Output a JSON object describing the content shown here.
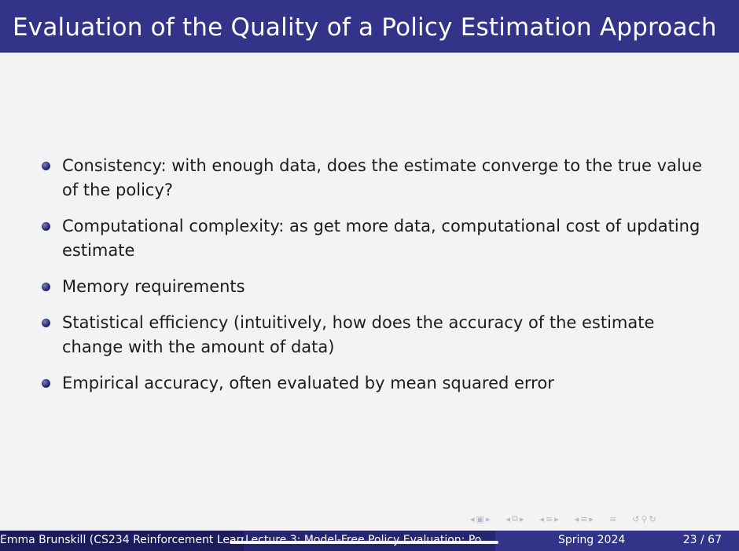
{
  "slide": {
    "title": "Evaluation of the Quality of a Policy Estimation Approach",
    "bullets": [
      "Consistency: with enough data, does the estimate converge to the true value of the policy?",
      "Computational complexity: as get more data, computational cost of updating estimate",
      "Memory requirements",
      "Statistical efficiency (intuitively, how does the accuracy of the estimate change with the amount of data)",
      "Empirical accuracy, often evaluated by mean squared error"
    ]
  },
  "footer": {
    "author": "Emma Brunskill (CS234 Reinforcement Learn",
    "lecture": "Lecture 3: Model-Free Policy Evaluation: Po",
    "date": "Spring 2024",
    "page": "23 / 67"
  },
  "nav": {
    "icons": [
      "frame-prev-icon",
      "frame-icon",
      "frame-next-icon",
      "subsection-prev-icon",
      "subsection-icon",
      "subsection-next-icon",
      "section-prev-icon",
      "section-icon",
      "section-next-icon",
      "slide-prev-icon",
      "slide-icon",
      "slide-next-icon",
      "toc-icon",
      "back-icon",
      "search-icon",
      "forward-icon"
    ]
  },
  "colors": {
    "title_bar": "#33338a",
    "footer_left": "#1c1c5c",
    "footer_mid": "#26266e",
    "footer_right": "#33338a",
    "background": "#f3f3f3"
  }
}
